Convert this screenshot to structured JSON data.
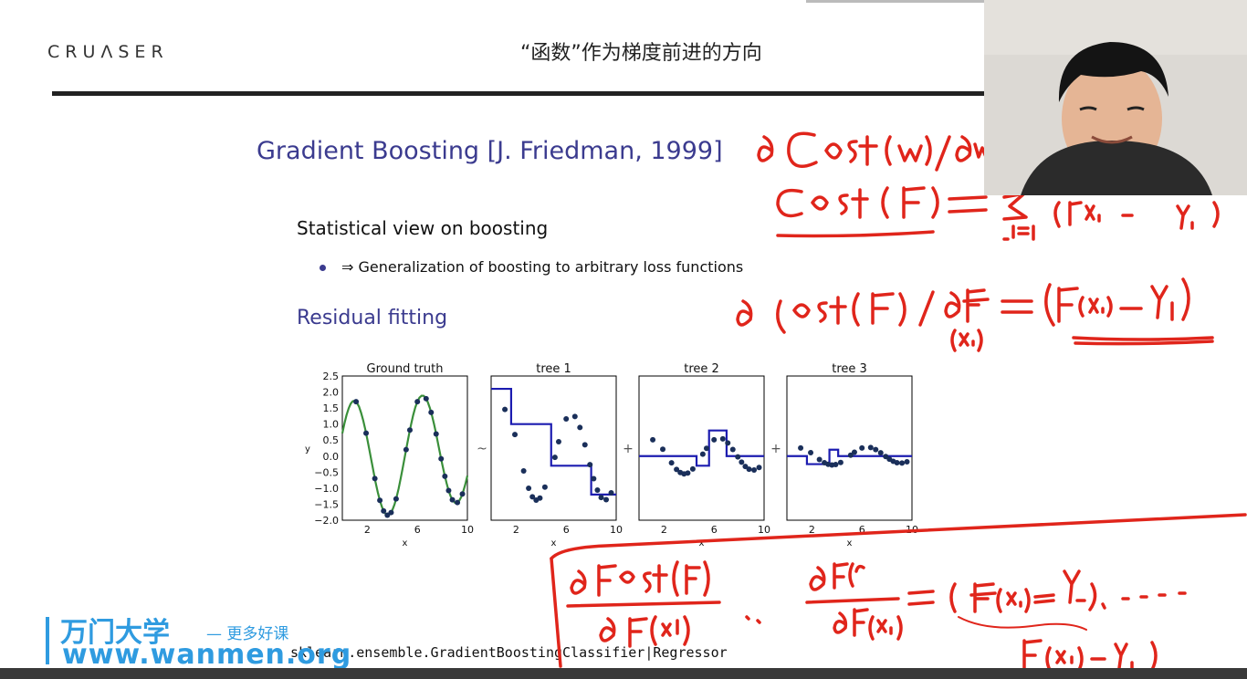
{
  "header": {
    "logo_text": "CRUΛSER",
    "slide_title": "“函数”作为梯度前进的方向"
  },
  "content": {
    "heading": "Gradient Boosting [J. Friedman, 1999]",
    "subheading": "Statistical view on boosting",
    "bullet": "⇒ Generalization of boosting to arbitrary loss functions",
    "residual_heading": "Residual fitting",
    "code_line": "sklearn.ensemble.GradientBoostingClassifier|Regressor"
  },
  "plots": {
    "panels": [
      {
        "title": "Ground truth"
      },
      {
        "title": "tree 1"
      },
      {
        "title": "tree 2"
      },
      {
        "title": "tree 3"
      }
    ],
    "operators": [
      "~",
      "+",
      "+"
    ],
    "ylabel": "y",
    "xlabel": "x",
    "yticks": [
      "2.5",
      "2.0",
      "1.5",
      "1.0",
      "0.5",
      "0.0",
      "−0.5",
      "−1.0",
      "−1.5",
      "−2.0"
    ],
    "xticks": [
      "2",
      "6",
      "10"
    ],
    "colors": {
      "ground_truth_line": "#3a8f3a",
      "tree_line": "#1c1cb0",
      "points": "#1a2f5a"
    }
  },
  "watermark": {
    "brand": "万门大学",
    "tagline": "— 更多好课",
    "url": "www.wanmen.org"
  },
  "annotations": {
    "color": "#e0251b",
    "lines": [
      "∂ Cost(w) / ∂w",
      "Cost(F) = Σ (F(xi) − yi)",
      "∂ Cost(F) / ∂F(xi) = (F(xi) − yi)",
      "∂ F cost(F) / ∂ F(x1)",
      "∂F(...) / ∂F(xN) = ( F(xN) − yN ) ...",
      "F(xN) − yN"
    ]
  }
}
